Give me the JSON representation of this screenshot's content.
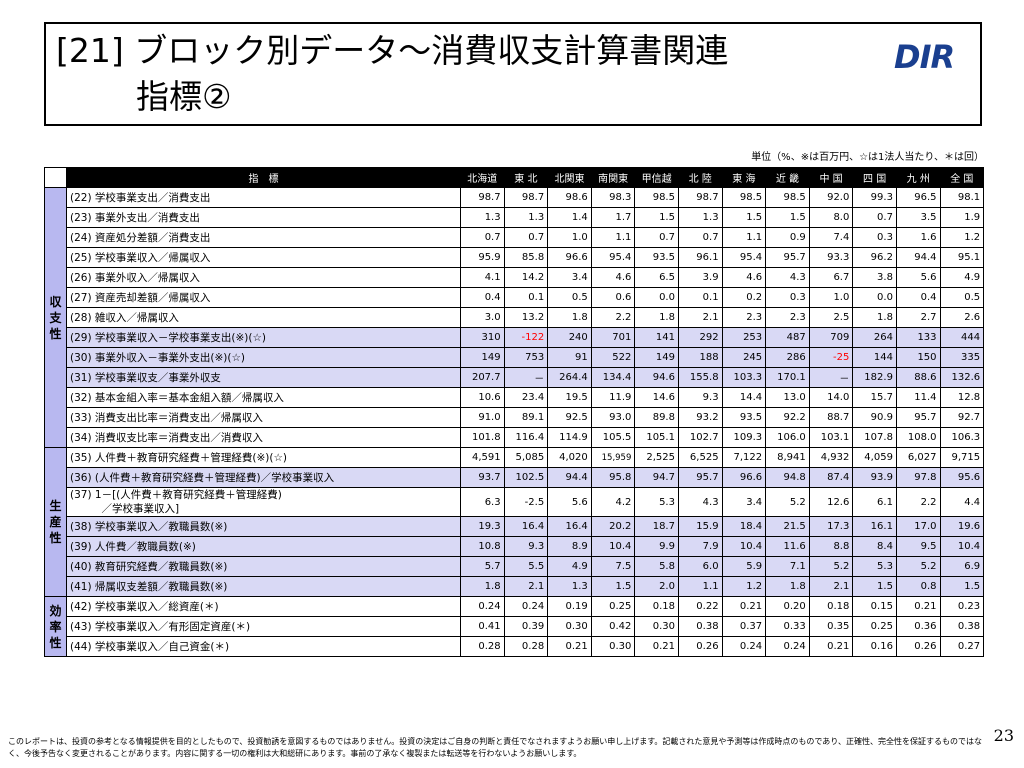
{
  "title": {
    "line1": "[21] ブロック別データ～消費収支計算書関連",
    "line2": "指標②",
    "logo": "DIR"
  },
  "unit_note": "単位（%、※は百万円、☆は1法人当たり、＊は回）",
  "table": {
    "headers": [
      "指　標",
      "北海道",
      "東 北",
      "北関東",
      "南関東",
      "甲信越",
      "北 陸",
      "東 海",
      "近 畿",
      "中 国",
      "四 国",
      "九 州",
      "全 国"
    ],
    "categories": {
      "income": "収支性",
      "productivity": "生産性",
      "efficiency": "効率性"
    },
    "rows": [
      {
        "label": "(22) 学校事業支出／消費支出",
        "values": [
          "98.7",
          "98.7",
          "98.6",
          "98.3",
          "98.5",
          "98.7",
          "98.5",
          "98.5",
          "92.0",
          "99.3",
          "96.5",
          "98.1"
        ]
      },
      {
        "label": "(23) 事業外支出／消費支出",
        "values": [
          "1.3",
          "1.3",
          "1.4",
          "1.7",
          "1.5",
          "1.3",
          "1.5",
          "1.5",
          "8.0",
          "0.7",
          "3.5",
          "1.9"
        ]
      },
      {
        "label": "(24) 資産処分差額／消費支出",
        "values": [
          "0.7",
          "0.7",
          "1.0",
          "1.1",
          "0.7",
          "0.7",
          "1.1",
          "0.9",
          "7.4",
          "0.3",
          "1.6",
          "1.2"
        ]
      },
      {
        "label": "(25) 学校事業収入／帰属収入",
        "values": [
          "95.9",
          "85.8",
          "96.6",
          "95.4",
          "93.5",
          "96.1",
          "95.4",
          "95.7",
          "93.3",
          "96.2",
          "94.4",
          "95.1"
        ]
      },
      {
        "label": "(26) 事業外収入／帰属収入",
        "values": [
          "4.1",
          "14.2",
          "3.4",
          "4.6",
          "6.5",
          "3.9",
          "4.6",
          "4.3",
          "6.7",
          "3.8",
          "5.6",
          "4.9"
        ]
      },
      {
        "label": "(27) 資産売却差額／帰属収入",
        "values": [
          "0.4",
          "0.1",
          "0.5",
          "0.6",
          "0.0",
          "0.1",
          "0.2",
          "0.3",
          "1.0",
          "0.0",
          "0.4",
          "0.5"
        ]
      },
      {
        "label": "(28) 雑収入／帰属収入",
        "values": [
          "3.0",
          "13.2",
          "1.8",
          "2.2",
          "1.8",
          "2.1",
          "2.3",
          "2.3",
          "2.5",
          "1.8",
          "2.7",
          "2.6"
        ]
      },
      {
        "label": "(29) 学校事業収入－学校事業支出(※)(☆)",
        "values": [
          "310",
          "-122",
          "240",
          "701",
          "141",
          "292",
          "253",
          "487",
          "709",
          "264",
          "133",
          "444"
        ]
      },
      {
        "label": "(30) 事業外収入－事業外支出(※)(☆)",
        "values": [
          "149",
          "753",
          "91",
          "522",
          "149",
          "188",
          "245",
          "286",
          "-25",
          "144",
          "150",
          "335"
        ]
      },
      {
        "label": "(31) 学校事業収支／事業外収支",
        "values": [
          "207.7",
          "－",
          "264.4",
          "134.4",
          "94.6",
          "155.8",
          "103.3",
          "170.1",
          "－",
          "182.9",
          "88.6",
          "132.6"
        ]
      },
      {
        "label": "(32) 基本金組入率＝基本金組入額／帰属収入",
        "values": [
          "10.6",
          "23.4",
          "19.5",
          "11.9",
          "14.6",
          "9.3",
          "14.4",
          "13.0",
          "14.0",
          "15.7",
          "11.4",
          "12.8"
        ]
      },
      {
        "label": "(33) 消費支出比率＝消費支出／帰属収入",
        "values": [
          "91.0",
          "89.1",
          "92.5",
          "93.0",
          "89.8",
          "93.2",
          "93.5",
          "92.2",
          "88.7",
          "90.9",
          "95.7",
          "92.7"
        ]
      },
      {
        "label": "(34) 消費収支比率＝消費支出／消費収入",
        "values": [
          "101.8",
          "116.4",
          "114.9",
          "105.5",
          "105.1",
          "102.7",
          "109.3",
          "106.0",
          "103.1",
          "107.8",
          "108.0",
          "106.3"
        ]
      },
      {
        "label": "(35) 人件費＋教育研究経費＋管理経費(※)(☆)",
        "values": [
          "4,591",
          "5,085",
          "4,020",
          "15,959",
          "2,525",
          "6,525",
          "7,122",
          "8,941",
          "4,932",
          "4,059",
          "6,027",
          "9,715"
        ]
      },
      {
        "label": "(36) (人件費＋教育研究経費＋管理経費)／学校事業収入",
        "values": [
          "93.7",
          "102.5",
          "94.4",
          "95.8",
          "94.7",
          "95.7",
          "96.6",
          "94.8",
          "87.4",
          "93.9",
          "97.8",
          "95.6"
        ]
      },
      {
        "label": "(37) 1－[(人件費＋教育研究経費＋管理経費)\n　　　／学校事業収入]",
        "values": [
          "6.3",
          "-2.5",
          "5.6",
          "4.2",
          "5.3",
          "4.3",
          "3.4",
          "5.2",
          "12.6",
          "6.1",
          "2.2",
          "4.4"
        ]
      },
      {
        "label": "(38) 学校事業収入／教職員数(※)",
        "values": [
          "19.3",
          "16.4",
          "16.4",
          "20.2",
          "18.7",
          "15.9",
          "18.4",
          "21.5",
          "17.3",
          "16.1",
          "17.0",
          "19.6"
        ]
      },
      {
        "label": "(39) 人件費／教職員数(※)",
        "values": [
          "10.8",
          "9.3",
          "8.9",
          "10.4",
          "9.9",
          "7.9",
          "10.4",
          "11.6",
          "8.8",
          "8.4",
          "9.5",
          "10.4"
        ]
      },
      {
        "label": "(40) 教育研究経費／教職員数(※)",
        "values": [
          "5.7",
          "5.5",
          "4.9",
          "7.5",
          "5.8",
          "6.0",
          "5.9",
          "7.1",
          "5.2",
          "5.3",
          "5.2",
          "6.9"
        ]
      },
      {
        "label": "(41) 帰属収支差額／教職員数(※)",
        "values": [
          "1.8",
          "2.1",
          "1.3",
          "1.5",
          "2.0",
          "1.1",
          "1.2",
          "1.8",
          "2.1",
          "1.5",
          "0.8",
          "1.5"
        ]
      },
      {
        "label": "(42) 学校事業収入／総資産(＊)",
        "values": [
          "0.24",
          "0.24",
          "0.19",
          "0.25",
          "0.18",
          "0.22",
          "0.21",
          "0.20",
          "0.18",
          "0.15",
          "0.21",
          "0.23"
        ]
      },
      {
        "label": "(43) 学校事業収入／有形固定資産(＊)",
        "values": [
          "0.41",
          "0.39",
          "0.30",
          "0.42",
          "0.30",
          "0.38",
          "0.37",
          "0.33",
          "0.35",
          "0.25",
          "0.36",
          "0.38"
        ]
      },
      {
        "label": "(44) 学校事業収入／自己資金(＊)",
        "values": [
          "0.28",
          "0.28",
          "0.21",
          "0.30",
          "0.21",
          "0.26",
          "0.24",
          "0.24",
          "0.21",
          "0.16",
          "0.26",
          "0.27"
        ]
      }
    ]
  },
  "footer": "このレポートは、投資の参考となる情報提供を目的としたもので、投資勧誘を意図するものではありません。投資の決定はご自身の判断と責任でなされますようお願い申し上げます。記載された意見や予測等は作成時点のものであり、正確性、完全性を保証するものではなく、今後予告なく変更されることがあります。内容に関する一切の権利は大和総研にあります。事前の了承なく複製または転送等を行わないようお願いします。",
  "page_number": "23"
}
